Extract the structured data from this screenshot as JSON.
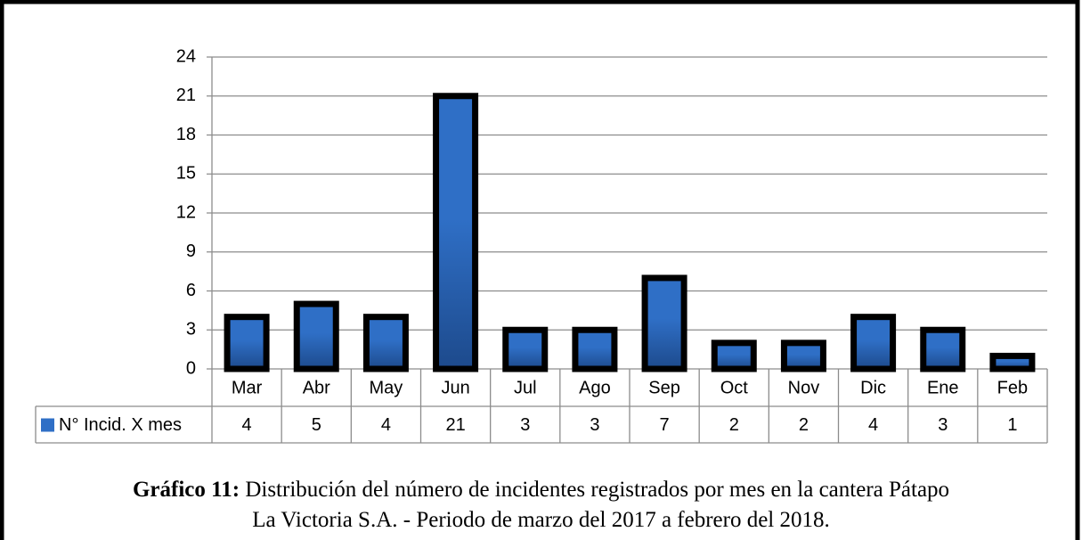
{
  "chart_data": {
    "type": "bar",
    "categories": [
      "Mar",
      "Abr",
      "May",
      "Jun",
      "Jul",
      "Ago",
      "Sep",
      "Oct",
      "Nov",
      "Dic",
      "Ene",
      "Feb"
    ],
    "series": [
      {
        "name": "N° Incid. X mes",
        "color": "#2f6fc6",
        "values": [
          4,
          5,
          4,
          21,
          3,
          3,
          7,
          2,
          2,
          4,
          3,
          1
        ]
      }
    ],
    "ylim": [
      0,
      24
    ],
    "yticks": [
      0,
      3,
      6,
      9,
      12,
      15,
      18,
      21,
      24
    ],
    "grid": true,
    "data_table": true,
    "caption": {
      "label": "Gráfico 11:",
      "lines": [
        "Distribución del número de incidentes registrados por mes en la cantera Pátapo",
        "La Victoria S.A. - Periodo de marzo del 2017 a febrero del 2018."
      ]
    }
  }
}
